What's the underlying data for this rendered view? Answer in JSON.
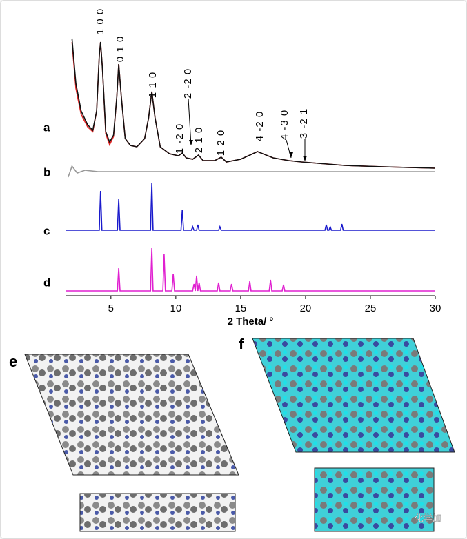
{
  "chart_data": {
    "type": "line",
    "xlabel": "2 Theta/ °",
    "xlim": [
      1.5,
      30
    ],
    "xticks": [
      5,
      10,
      15,
      20,
      25,
      30
    ],
    "series": [
      {
        "name": "a",
        "color": "#e02020",
        "x": [
          2.0,
          2.3,
          2.7,
          3.2,
          3.6,
          3.9,
          4.1,
          4.2,
          4.35,
          4.6,
          4.9,
          5.2,
          5.45,
          5.6,
          5.8,
          6.1,
          6.5,
          7.0,
          7.6,
          7.9,
          8.15,
          8.4,
          8.8,
          9.5,
          10.2,
          10.5,
          10.8,
          11.3,
          11.75,
          12.1,
          13.0,
          13.5,
          13.9,
          15.0,
          16.3,
          17.5,
          18.7,
          19.7,
          21,
          23,
          26,
          30
        ],
        "values": [
          185,
          118,
          80,
          62,
          55,
          85,
          165,
          185,
          145,
          52,
          36,
          48,
          105,
          153,
          105,
          45,
          35,
          33,
          45,
          75,
          113,
          75,
          33,
          23,
          20,
          24,
          17,
          15,
          21,
          13,
          13,
          18,
          11,
          15,
          26,
          17,
          13,
          11,
          9,
          6,
          4,
          2
        ]
      },
      {
        "name": "a",
        "color": "#111111",
        "x": [
          2.0,
          2.3,
          2.7,
          3.2,
          3.6,
          3.9,
          4.1,
          4.2,
          4.35,
          4.6,
          4.9,
          5.2,
          5.45,
          5.6,
          5.8,
          6.1,
          6.5,
          7.0,
          7.6,
          7.9,
          8.15,
          8.4,
          8.8,
          9.5,
          10.2,
          10.5,
          10.8,
          11.3,
          11.75,
          12.1,
          13.0,
          13.5,
          13.9,
          15.0,
          16.3,
          17.5,
          18.7,
          19.7,
          21,
          23,
          26,
          30
        ],
        "values": [
          190,
          125,
          85,
          65,
          57,
          85,
          165,
          185,
          145,
          55,
          40,
          50,
          105,
          153,
          105,
          45,
          35,
          33,
          45,
          75,
          113,
          75,
          33,
          23,
          20,
          24,
          17,
          15,
          21,
          13,
          13,
          18,
          11,
          15,
          26,
          17,
          13,
          11,
          9,
          6,
          4,
          2
        ]
      },
      {
        "name": "b",
        "color": "#999999",
        "x": [
          1.7,
          2.0,
          2.4,
          3.0,
          4.0,
          30
        ],
        "values": [
          -8,
          8,
          -2,
          2,
          0,
          0
        ]
      },
      {
        "name": "c",
        "color": "#1a1acc",
        "x": [
          1.5,
          4.1,
          4.2,
          4.3,
          5.5,
          5.6,
          5.7,
          8.05,
          8.15,
          8.25,
          10.4,
          10.5,
          10.6,
          11.2,
          11.3,
          11.4,
          11.6,
          11.7,
          11.8,
          13.3,
          13.4,
          13.5,
          21.5,
          21.6,
          21.7,
          21.8,
          21.9,
          22.0,
          22.7,
          22.8,
          22.9,
          30
        ],
        "values": [
          0,
          0,
          57,
          0,
          0,
          45,
          0,
          0,
          68,
          0,
          0,
          30,
          0,
          0,
          5,
          0,
          0,
          8,
          0,
          0,
          5,
          0,
          0,
          8,
          0,
          0,
          5,
          0,
          0,
          9,
          0,
          0
        ]
      },
      {
        "name": "d",
        "color": "#e020d0",
        "x": [
          1.5,
          5.5,
          5.6,
          5.7,
          8.05,
          8.15,
          8.25,
          9.0,
          9.1,
          9.2,
          9.7,
          9.8,
          9.9,
          11.3,
          11.4,
          11.5,
          11.6,
          11.7,
          11.8,
          11.9,
          13.2,
          13.3,
          13.4,
          14.2,
          14.3,
          14.4,
          15.6,
          15.7,
          15.8,
          17.2,
          17.3,
          17.4,
          18.2,
          18.3,
          18.4,
          30
        ],
        "values": [
          0,
          0,
          33,
          0,
          0,
          62,
          0,
          0,
          53,
          0,
          0,
          25,
          0,
          0,
          10,
          0,
          22,
          0,
          12,
          0,
          0,
          12,
          0,
          0,
          10,
          0,
          0,
          14,
          0,
          0,
          16,
          0,
          0,
          9,
          0,
          0
        ]
      }
    ],
    "annotations": [
      "1 0 0",
      "0 1 0",
      "1 1 0",
      "1 -2 0",
      "2 -2 0",
      "2 1 0",
      "1 2 0",
      "4 -2 0",
      "4 -3 0",
      "3 -2 1"
    ]
  },
  "panels": [
    "e",
    "f"
  ],
  "watermark": "化学加"
}
